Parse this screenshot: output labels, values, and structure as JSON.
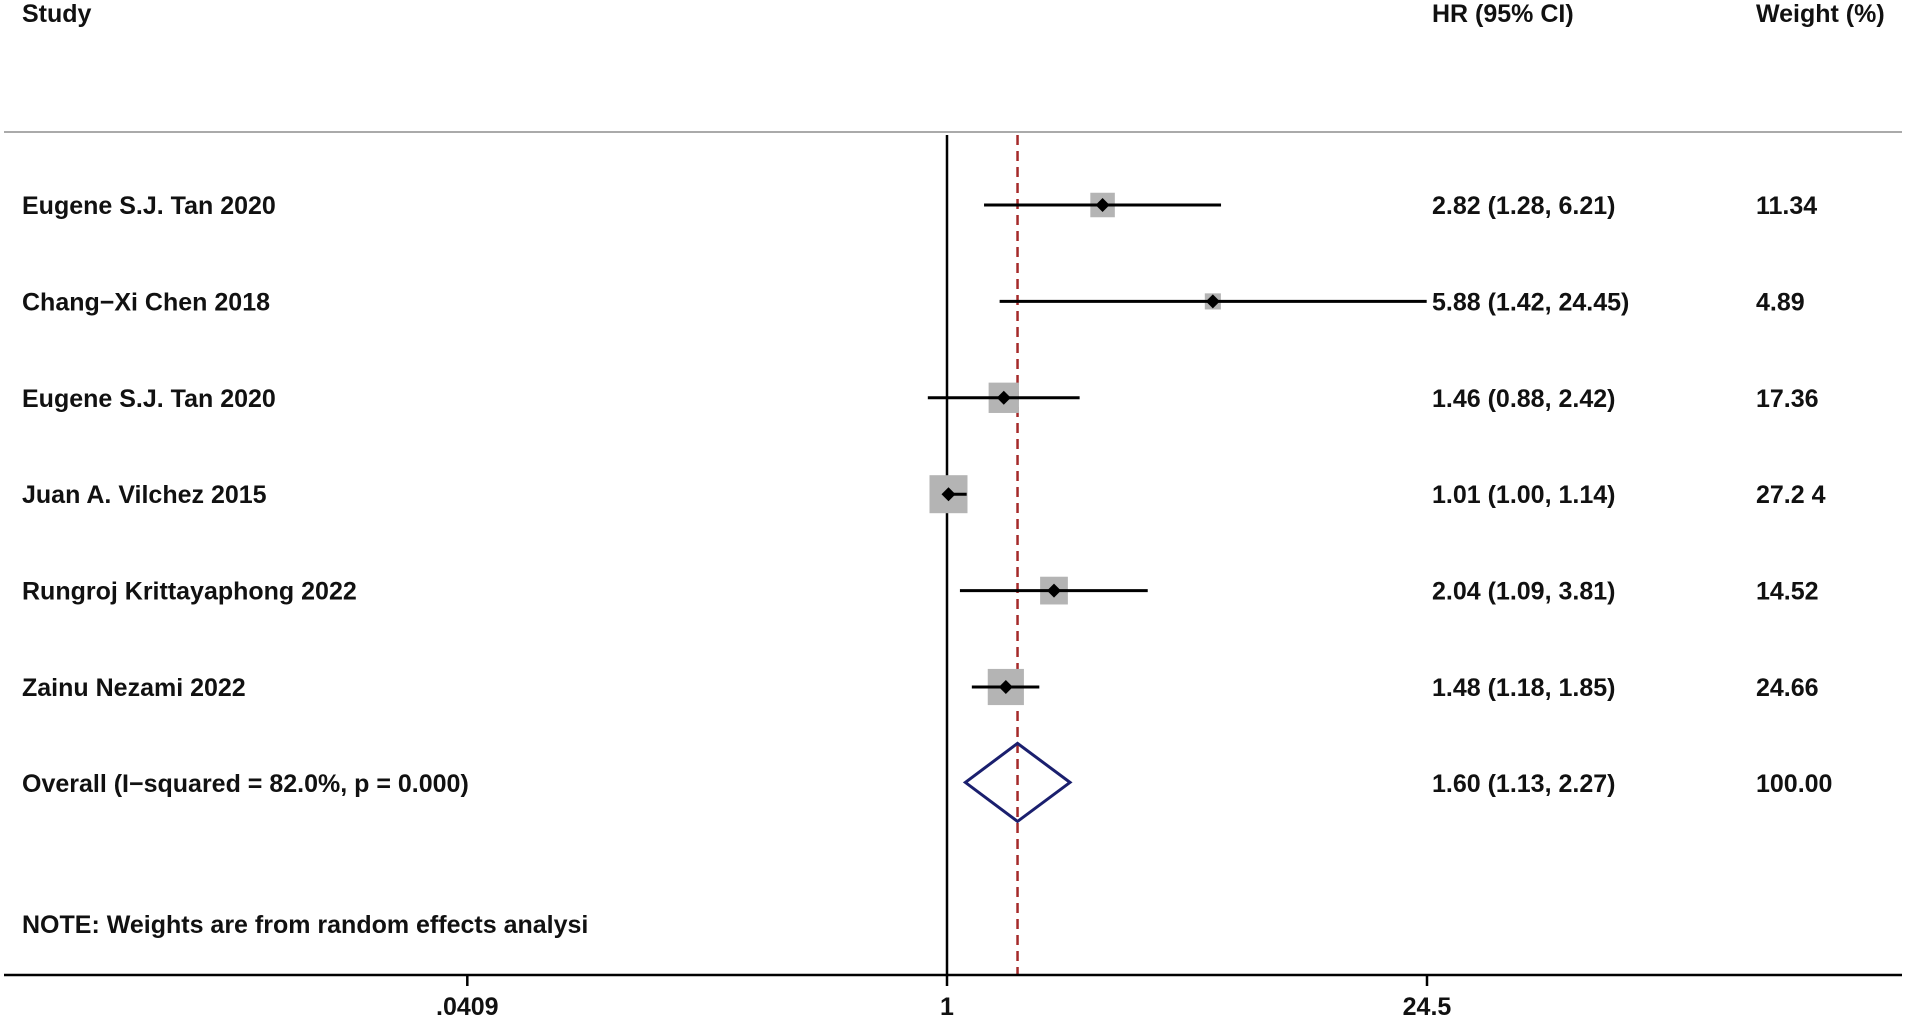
{
  "headers": {
    "study": "Study",
    "hr": "HR (95% CI)",
    "weight": "Weight (%)"
  },
  "note": "NOTE: Weights are from random effects analysi",
  "colors": {
    "ci_line": "#000000",
    "weight_box": "#b4b4b4",
    "point": "#000000",
    "overall_diamond": "#1a1f6e",
    "null_line": "#000000",
    "pooled_line": "#a52a2a",
    "axis": "#000000",
    "separator": "#aaaaaa"
  },
  "chart_data": {
    "type": "forest",
    "effect_measure": "HR",
    "x_scale": "log",
    "xlim": [
      0.0409,
      24.5
    ],
    "x_ticks": [
      {
        "value": 0.0409,
        "label": ".0409"
      },
      {
        "value": 1,
        "label": "1"
      },
      {
        "value": 24.5,
        "label": "24.5"
      }
    ],
    "null_value": 1,
    "pooled_reference": 1.6,
    "studies": [
      {
        "label": "Eugene S.J. Tan 2020",
        "hr": 2.82,
        "lower": 1.28,
        "upper": 6.21,
        "hr_text": "2.82 (1.28, 6.21)",
        "weight": 11.34,
        "weight_text": "11.34"
      },
      {
        "label": "Chang−Xi Chen 2018",
        "hr": 5.88,
        "lower": 1.42,
        "upper": 24.45,
        "hr_text": "5.88 (1.42, 24.45)",
        "weight": 4.89,
        "weight_text": "4.89"
      },
      {
        "label": "Eugene S.J. Tan 2020",
        "hr": 1.46,
        "lower": 0.88,
        "upper": 2.42,
        "hr_text": "1.46 (0.88, 2.42)",
        "weight": 17.36,
        "weight_text": "17.36"
      },
      {
        "label": "Juan A. Vilchez 2015",
        "hr": 1.01,
        "lower": 1.0,
        "upper": 1.14,
        "hr_text": "1.01 (1.00, 1.14)",
        "weight": 27.24,
        "weight_text": "27.2 4"
      },
      {
        "label": "Rungroj Krittayaphong 2022",
        "hr": 2.04,
        "lower": 1.09,
        "upper": 3.81,
        "hr_text": "2.04 (1.09, 3.81)",
        "weight": 14.52,
        "weight_text": "14.52"
      },
      {
        "label": "Zainu Nezami 2022",
        "hr": 1.48,
        "lower": 1.18,
        "upper": 1.85,
        "hr_text": "1.48 (1.18, 1.85)",
        "weight": 24.66,
        "weight_text": "24.66"
      }
    ],
    "overall": {
      "label": "Overall  (I−squared = 82.0%, p = 0.000)",
      "hr": 1.6,
      "lower": 1.13,
      "upper": 2.27,
      "hr_text": "1.60 (1.13, 2.27)",
      "weight": 100.0,
      "weight_text": "100.00"
    }
  }
}
